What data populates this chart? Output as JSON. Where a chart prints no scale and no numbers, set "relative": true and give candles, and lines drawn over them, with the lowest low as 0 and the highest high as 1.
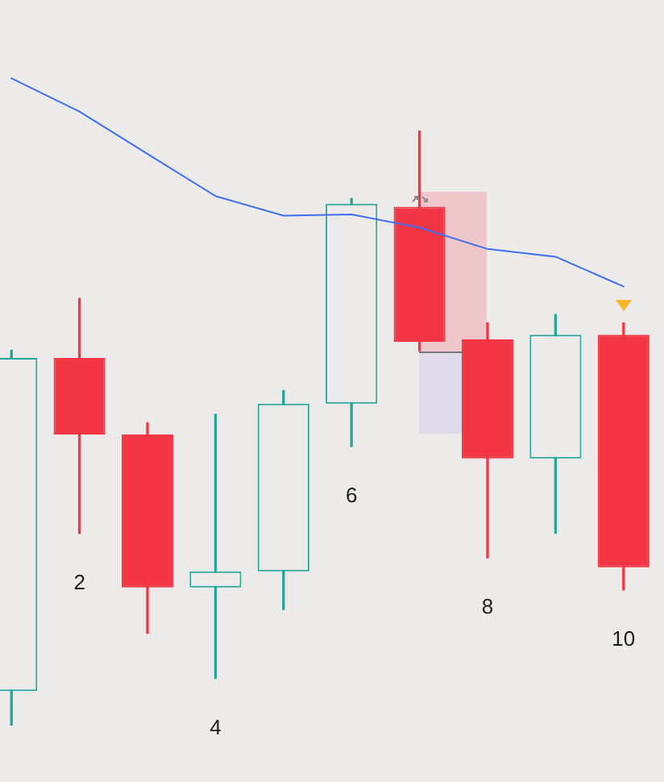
{
  "chart_data": {
    "type": "candlestick",
    "relative": true,
    "categories": [
      null,
      "2",
      null,
      "4",
      null,
      "6",
      null,
      "8",
      null,
      "10"
    ],
    "ohlc": [
      [
        0.058,
        0.631,
        0,
        0.618
      ],
      [
        0.618,
        0.718,
        0.323,
        0.489
      ],
      [
        0.489,
        0.509,
        0.155,
        0.232
      ],
      [
        0.232,
        0.523,
        0.079,
        0.259
      ],
      [
        0.259,
        0.563,
        0.195,
        0.541
      ],
      [
        0.541,
        0.886,
        0.469,
        0.877
      ],
      [
        0.872,
        1,
        0.63,
        0.645
      ],
      [
        0.649,
        0.677,
        0.282,
        0.449
      ],
      [
        0.449,
        0.691,
        0.323,
        0.657
      ],
      [
        0.657,
        0.677,
        0.228,
        0.266
      ]
    ],
    "colors": [
      "#26a69a",
      "#f23645",
      "#f23645",
      "#26a69a",
      "#26a69a",
      "#26a69a",
      "#f23645",
      "#f23645",
      "#26a69a",
      "#f23645"
    ],
    "series": [
      {
        "type": "line",
        "color": "#3f6ff2",
        "values": [
          1.088,
          1.032,
          0.961,
          0.89,
          0.857,
          0.859,
          0.837,
          0.801,
          0.788,
          0.738
        ]
      }
    ]
  }
}
